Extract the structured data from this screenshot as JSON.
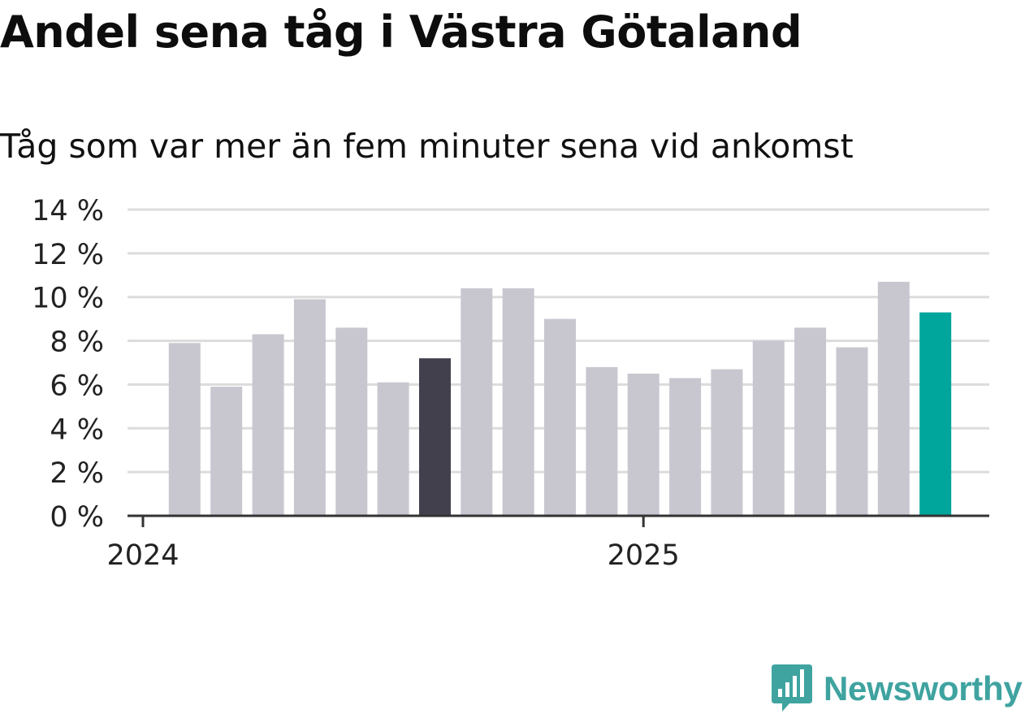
{
  "title": "Andel sena tåg i Västra Götaland",
  "subtitle": "Tåg som var mer än fem minuter sena vid ankomst",
  "brand": "Newsworthy",
  "chart_data": {
    "type": "bar",
    "unit": "%",
    "ylim": [
      0,
      14
    ],
    "yticks": [
      "0 %",
      "2 %",
      "4 %",
      "6 %",
      "8 %",
      "10 %",
      "12 %",
      "14 %"
    ],
    "ytick_values": [
      0,
      2,
      4,
      6,
      8,
      10,
      12,
      14
    ],
    "xticks": [
      "2024",
      "2025"
    ],
    "categories": [
      "2024-01",
      "2024-02",
      "2024-03",
      "2024-04",
      "2024-05",
      "2024-06",
      "2024-07",
      "2024-08",
      "2024-09",
      "2024-10",
      "2024-11",
      "2024-12",
      "2025-01",
      "2025-02",
      "2025-03",
      "2025-04",
      "2025-05",
      "2025-06",
      "2025-07",
      "2025-08"
    ],
    "values": [
      null,
      7.9,
      5.9,
      8.3,
      9.9,
      8.6,
      6.1,
      7.2,
      10.4,
      10.4,
      9.0,
      6.8,
      6.5,
      6.3,
      6.7,
      8.0,
      8.6,
      7.7,
      10.7,
      9.3
    ],
    "grid": true,
    "colors": {
      "default": "#c8c7d0",
      "highlight_previous_year": "#43404d",
      "highlight_latest": "#00a59b",
      "gridline": "#dcdcdc",
      "axis": "#333333"
    },
    "highlight_previous_year_index": 7,
    "highlight_latest_index": 19
  }
}
